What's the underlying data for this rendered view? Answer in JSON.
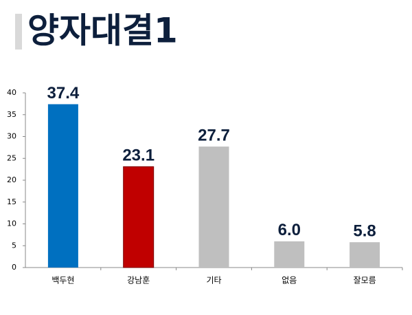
{
  "chart_data": {
    "type": "bar",
    "title": "양자대결1",
    "categories": [
      "백두현",
      "강남훈",
      "기타",
      "없음",
      "잘모름"
    ],
    "values": [
      37.4,
      23.1,
      27.7,
      6.0,
      5.8
    ],
    "value_labels": [
      "37.4",
      "23.1",
      "27.7",
      "6.0",
      "5.8"
    ],
    "colors": [
      "#0070c0",
      "#c00000",
      "#bfbfbf",
      "#bfbfbf",
      "#bfbfbf"
    ],
    "ylim": [
      0,
      40
    ],
    "yticks": [
      0,
      5,
      10,
      15,
      20,
      25,
      30,
      35,
      40
    ],
    "grid": false
  }
}
